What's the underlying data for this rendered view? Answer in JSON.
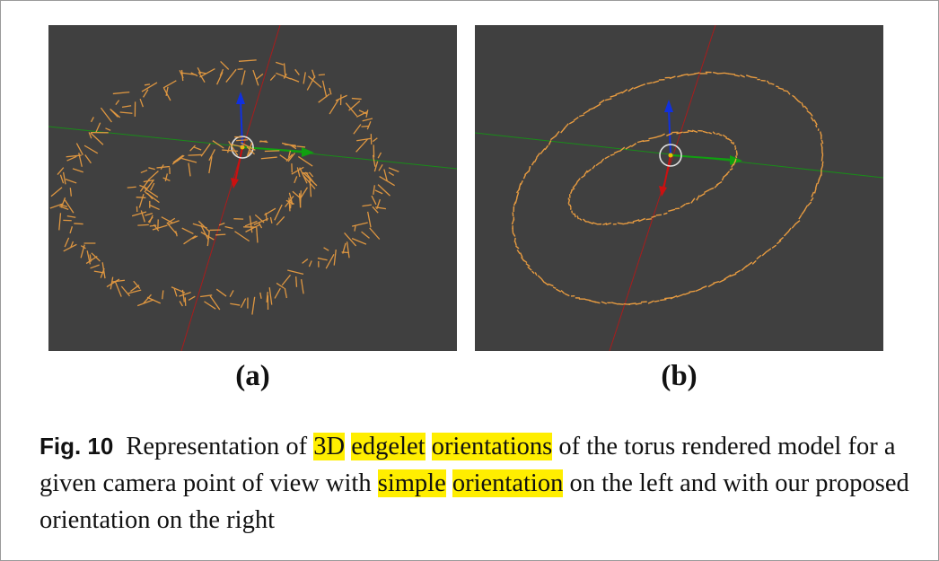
{
  "figure": {
    "subfigures": [
      {
        "label": "(a)",
        "description_key": "simple"
      },
      {
        "label": "(b)",
        "description_key": "proposed"
      }
    ],
    "caption": {
      "fig_label": "Fig. 10",
      "segments": [
        {
          "text": "Representation of ",
          "highlight": false
        },
        {
          "text": "3D",
          "highlight": true
        },
        {
          "text": " ",
          "highlight": false
        },
        {
          "text": "edgelet",
          "highlight": true
        },
        {
          "text": " ",
          "highlight": false
        },
        {
          "text": "orientations",
          "highlight": true
        },
        {
          "text": " of the torus rendered model for a given camera point of view with ",
          "highlight": false
        },
        {
          "text": "simple",
          "highlight": true
        },
        {
          "text": " ",
          "highlight": false
        },
        {
          "text": "orientation",
          "highlight": true
        },
        {
          "text": " on the left and with our proposed orientation on the right",
          "highlight": false
        }
      ]
    }
  },
  "colors": {
    "background": "#404040",
    "edgelet": "#f0a040",
    "axis_x": "#cc1010",
    "axis_y": "#10a010",
    "axis_z": "#1030e0",
    "highlight": "#ffee00"
  }
}
